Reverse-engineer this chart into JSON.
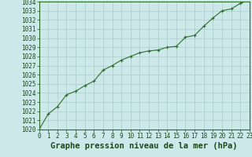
{
  "x": [
    0,
    1,
    2,
    3,
    4,
    5,
    6,
    7,
    8,
    9,
    10,
    11,
    12,
    13,
    14,
    15,
    16,
    17,
    18,
    19,
    20,
    21,
    22,
    23
  ],
  "y": [
    1020.0,
    1021.7,
    1022.5,
    1023.8,
    1024.2,
    1024.8,
    1025.3,
    1026.5,
    1027.0,
    1027.6,
    1028.0,
    1028.4,
    1028.6,
    1028.7,
    1029.0,
    1029.1,
    1030.1,
    1030.3,
    1031.3,
    1032.2,
    1033.0,
    1033.2,
    1033.8,
    1034.2
  ],
  "title": "Graphe pression niveau de la mer (hPa)",
  "bg_color": "#cce8e8",
  "grid_color": "#aacccc",
  "line_color": "#2d6e2d",
  "marker_color": "#2d6e2d",
  "text_color": "#1a4a1a",
  "ylim": [
    1020,
    1034
  ],
  "xlim": [
    0,
    23
  ],
  "yticks": [
    1020,
    1021,
    1022,
    1023,
    1024,
    1025,
    1026,
    1027,
    1028,
    1029,
    1030,
    1031,
    1032,
    1033,
    1034
  ],
  "xticks": [
    0,
    1,
    2,
    3,
    4,
    5,
    6,
    7,
    8,
    9,
    10,
    11,
    12,
    13,
    14,
    15,
    16,
    17,
    18,
    19,
    20,
    21,
    22,
    23
  ],
  "title_fontsize": 7.5,
  "tick_fontsize": 5.5,
  "title_color": "#1a4a1a",
  "axis_color": "#2d6e2d",
  "bottom_color": "#2d6e2d"
}
